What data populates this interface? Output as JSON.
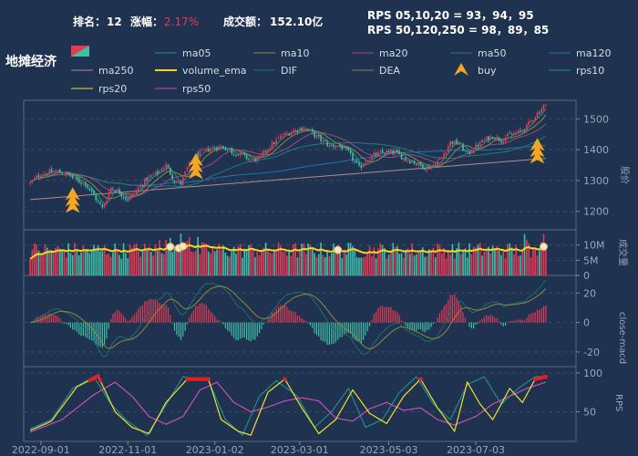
{
  "header": {
    "rank_label": "排名：",
    "rank_value": "12",
    "change_label": "涨幅：",
    "change_value": "2.17%",
    "turnover_label": "成交额：",
    "turnover_value": "152.10亿",
    "rps_line1": "RPS 05,10,20 = 93，94，95",
    "rps_line2": "RPS 50,120,250 = 98，89，85",
    "title": "地摊经济"
  },
  "colors": {
    "background": "#1f324f",
    "up": "#e63a54",
    "down": "#3fbfa8",
    "ma05": "#2b8c8c",
    "ma10": "#8f8a3c",
    "ma20": "#9c4a86",
    "ma50": "#1f7f77",
    "ma120": "#2a6fb0",
    "ma250": "#b08c8c",
    "volume_ema": "#ffd21f",
    "dif": "#1d6f6c",
    "dea": "#8f8a3c",
    "rps10": "#1e8c8c",
    "rps20": "#f2e02b",
    "rps50": "#c84fb8",
    "buy": "#f5a623",
    "grid": "#3a4b66",
    "axis_text": "#9aa6b8"
  },
  "legend": {
    "items": [
      {
        "label": "",
        "kind": "candle-icon"
      },
      {
        "label": "ma05",
        "kind": "line",
        "color_key": "ma05"
      },
      {
        "label": "ma10",
        "kind": "line",
        "color_key": "ma10"
      },
      {
        "label": "ma20",
        "kind": "line",
        "color_key": "ma20"
      },
      {
        "label": "ma50",
        "kind": "line",
        "color_key": "ma50"
      },
      {
        "label": "ma120",
        "kind": "line",
        "color_key": "ma120"
      },
      {
        "label": "ma250",
        "kind": "line",
        "color_key": "ma250"
      },
      {
        "label": "volume_ema",
        "kind": "line",
        "color_key": "volume_ema"
      },
      {
        "label": "DIF",
        "kind": "line",
        "color_key": "dif"
      },
      {
        "label": "DEA",
        "kind": "line",
        "color_key": "dea"
      },
      {
        "label": "buy",
        "kind": "triangle",
        "color_key": "buy"
      },
      {
        "label": "rps10",
        "kind": "line",
        "color_key": "rps10"
      },
      {
        "label": "rps20",
        "kind": "line",
        "color_key": "rps20"
      },
      {
        "label": "rps50",
        "kind": "line",
        "color_key": "rps50"
      }
    ]
  },
  "chart_data": {
    "type": "candlestick",
    "x_ticks": [
      "2022-09-01",
      "2022-11-01",
      "2023-01-02",
      "2023-03-01",
      "2023-05-03",
      "2023-07-03"
    ],
    "x_tick_index": [
      5,
      46,
      87,
      127,
      169,
      210
    ],
    "price": {
      "ylabel": "股价",
      "ylim": [
        1140,
        1560
      ],
      "ticks": [
        1200,
        1300,
        1400,
        1500
      ],
      "anchors": [
        [
          0,
          1292
        ],
        [
          5,
          1322
        ],
        [
          12,
          1330
        ],
        [
          18,
          1318
        ],
        [
          22,
          1300
        ],
        [
          26,
          1290
        ],
        [
          30,
          1250
        ],
        [
          34,
          1210
        ],
        [
          38,
          1278
        ],
        [
          42,
          1262
        ],
        [
          46,
          1238
        ],
        [
          50,
          1268
        ],
        [
          55,
          1305
        ],
        [
          60,
          1325
        ],
        [
          64,
          1350
        ],
        [
          68,
          1300
        ],
        [
          71,
          1290
        ],
        [
          74,
          1340
        ],
        [
          78,
          1380
        ],
        [
          84,
          1402
        ],
        [
          90,
          1412
        ],
        [
          95,
          1393
        ],
        [
          100,
          1382
        ],
        [
          104,
          1365
        ],
        [
          108,
          1372
        ],
        [
          112,
          1405
        ],
        [
          118,
          1442
        ],
        [
          124,
          1462
        ],
        [
          129,
          1472
        ],
        [
          133,
          1452
        ],
        [
          137,
          1432
        ],
        [
          141,
          1412
        ],
        [
          146,
          1412
        ],
        [
          150,
          1390
        ],
        [
          152,
          1370
        ],
        [
          155,
          1340
        ],
        [
          158,
          1362
        ],
        [
          162,
          1382
        ],
        [
          167,
          1392
        ],
        [
          172,
          1392
        ],
        [
          176,
          1372
        ],
        [
          180,
          1362
        ],
        [
          184,
          1348
        ],
        [
          187,
          1340
        ],
        [
          190,
          1350
        ],
        [
          194,
          1375
        ],
        [
          198,
          1425
        ],
        [
          202,
          1420
        ],
        [
          206,
          1385
        ],
        [
          210,
          1410
        ],
        [
          214,
          1430
        ],
        [
          218,
          1445
        ],
        [
          222,
          1432
        ],
        [
          226,
          1448
        ],
        [
          230,
          1455
        ],
        [
          234,
          1475
        ],
        [
          237,
          1502
        ],
        [
          240,
          1525
        ],
        [
          242,
          1542
        ]
      ]
    },
    "buy_signals": [
      {
        "index": 20,
        "price": 1260
      },
      {
        "index": 78,
        "price": 1370
      },
      {
        "index": 239,
        "price": 1420
      }
    ],
    "volume": {
      "ylabel": "成交量",
      "ylim": [
        0,
        15
      ],
      "ticks": [
        "0",
        "5M",
        "10M"
      ],
      "tick_values": [
        0,
        5,
        10
      ],
      "highlight_index": [
        66,
        70,
        72,
        145,
        242
      ]
    },
    "macd": {
      "ylabel": "close-macd",
      "ylim": [
        -30,
        32
      ],
      "ticks": [
        -20,
        0,
        20
      ]
    },
    "rps": {
      "ylabel": "RPS",
      "ylim": [
        12,
        108
      ],
      "ticks": [
        50,
        100
      ],
      "rps10_anchors": [
        [
          0,
          28
        ],
        [
          10,
          40
        ],
        [
          20,
          80
        ],
        [
          30,
          95
        ],
        [
          38,
          60
        ],
        [
          45,
          40
        ],
        [
          55,
          20
        ],
        [
          62,
          50
        ],
        [
          72,
          95
        ],
        [
          84,
          90
        ],
        [
          92,
          40
        ],
        [
          100,
          20
        ],
        [
          108,
          70
        ],
        [
          116,
          90
        ],
        [
          126,
          70
        ],
        [
          134,
          30
        ],
        [
          142,
          50
        ],
        [
          150,
          80
        ],
        [
          158,
          30
        ],
        [
          166,
          40
        ],
        [
          174,
          75
        ],
        [
          182,
          95
        ],
        [
          190,
          60
        ],
        [
          198,
          40
        ],
        [
          206,
          85
        ],
        [
          214,
          95
        ],
        [
          222,
          60
        ],
        [
          230,
          80
        ],
        [
          238,
          95
        ],
        [
          243,
          96
        ]
      ],
      "rps20_anchors": [
        [
          0,
          26
        ],
        [
          10,
          38
        ],
        [
          22,
          82
        ],
        [
          32,
          96
        ],
        [
          40,
          50
        ],
        [
          48,
          30
        ],
        [
          56,
          22
        ],
        [
          64,
          62
        ],
        [
          74,
          92
        ],
        [
          84,
          92
        ],
        [
          90,
          40
        ],
        [
          98,
          25
        ],
        [
          104,
          20
        ],
        [
          112,
          75
        ],
        [
          120,
          92
        ],
        [
          128,
          55
        ],
        [
          136,
          22
        ],
        [
          144,
          40
        ],
        [
          152,
          78
        ],
        [
          160,
          48
        ],
        [
          168,
          35
        ],
        [
          176,
          70
        ],
        [
          184,
          92
        ],
        [
          192,
          55
        ],
        [
          200,
          25
        ],
        [
          206,
          88
        ],
        [
          212,
          60
        ],
        [
          218,
          40
        ],
        [
          226,
          80
        ],
        [
          232,
          62
        ],
        [
          238,
          92
        ],
        [
          243,
          95
        ]
      ],
      "rps50_anchors": [
        [
          0,
          24
        ],
        [
          15,
          40
        ],
        [
          30,
          72
        ],
        [
          40,
          88
        ],
        [
          48,
          70
        ],
        [
          56,
          44
        ],
        [
          64,
          34
        ],
        [
          72,
          44
        ],
        [
          80,
          78
        ],
        [
          88,
          88
        ],
        [
          96,
          62
        ],
        [
          104,
          50
        ],
        [
          112,
          56
        ],
        [
          120,
          64
        ],
        [
          128,
          68
        ],
        [
          136,
          64
        ],
        [
          144,
          42
        ],
        [
          152,
          38
        ],
        [
          160,
          54
        ],
        [
          168,
          62
        ],
        [
          176,
          52
        ],
        [
          184,
          55
        ],
        [
          192,
          40
        ],
        [
          200,
          33
        ],
        [
          210,
          44
        ],
        [
          218,
          60
        ],
        [
          226,
          70
        ],
        [
          234,
          80
        ],
        [
          243,
          88
        ]
      ]
    }
  }
}
